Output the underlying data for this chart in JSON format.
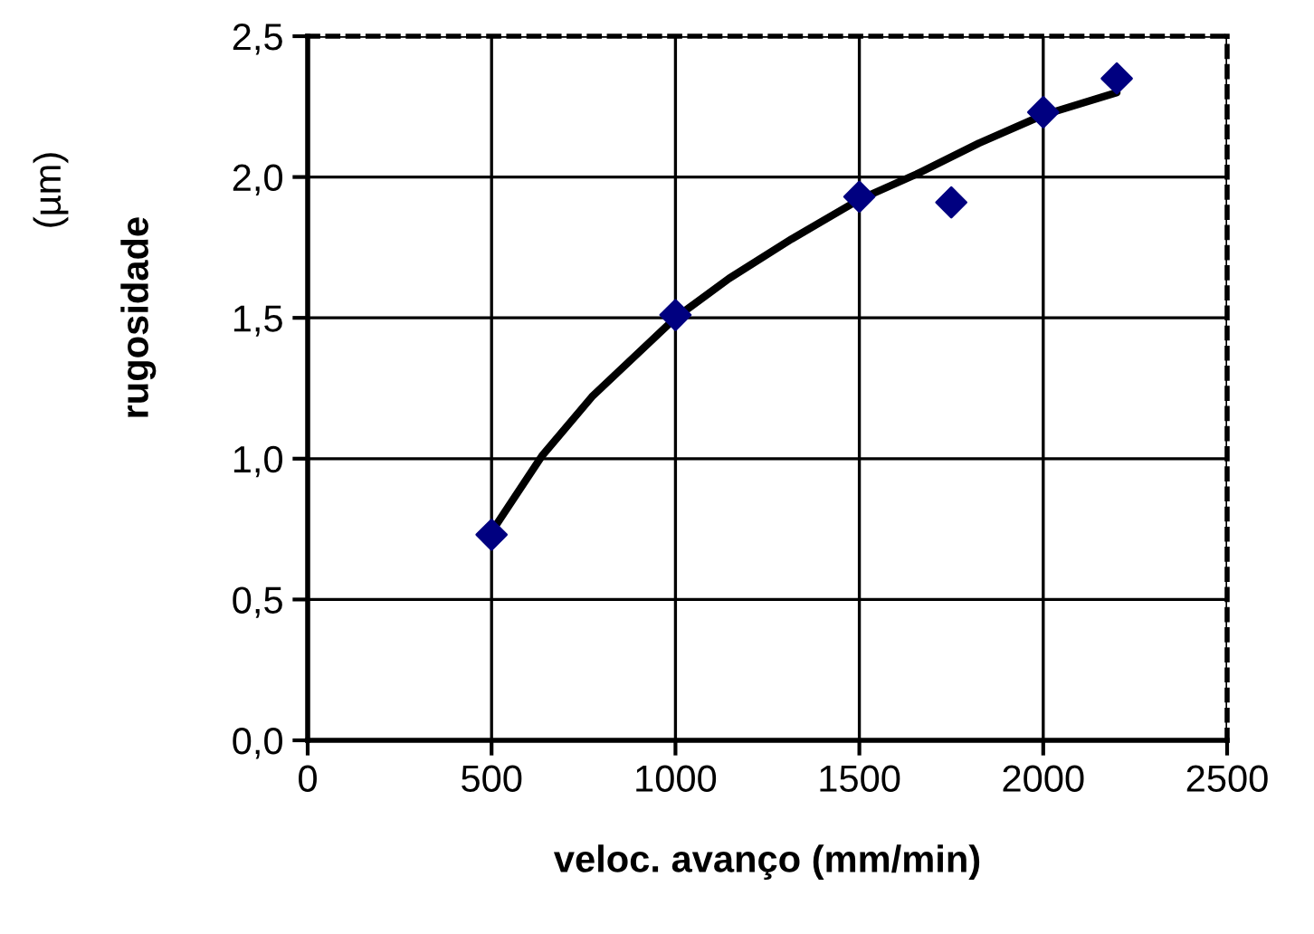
{
  "chart_data": {
    "type": "scatter",
    "xlabel": "veloc. avanço (mm/min)",
    "ylabel": "rugosidade",
    "annotations": [
      "(µm)"
    ],
    "series": [
      {
        "color": "#000080",
        "marker": "diamond",
        "x": [
          500,
          1000,
          1500,
          1750,
          2000,
          2200
        ],
        "values": [
          0.73,
          1.51,
          1.93,
          1.91,
          2.23,
          2.35
        ]
      },
      {
        "type": "line",
        "color": "#000000",
        "marker": "none",
        "x": [
          500,
          637,
          773,
          1000,
          1146,
          1316,
          1500,
          1655,
          1825,
          2000,
          2200
        ],
        "values": [
          0.74,
          1.01,
          1.22,
          1.5,
          1.64,
          1.78,
          1.92,
          2.01,
          2.12,
          2.22,
          2.3
        ]
      }
    ],
    "xlim": [
      0,
      2500
    ],
    "xticks": [
      0,
      500,
      1000,
      1500,
      2000,
      2500
    ],
    "ylim": [
      0,
      2.5
    ],
    "yticks": [
      {
        "value": 0,
        "label": "0,0"
      },
      {
        "value": 0.5,
        "label": "0,5"
      },
      {
        "value": 1,
        "label": "1,0"
      },
      {
        "value": 1.5,
        "label": "1,5"
      },
      {
        "value": 2,
        "label": "2,0"
      },
      {
        "value": 2.5,
        "label": "2,5"
      }
    ],
    "grid": true
  }
}
